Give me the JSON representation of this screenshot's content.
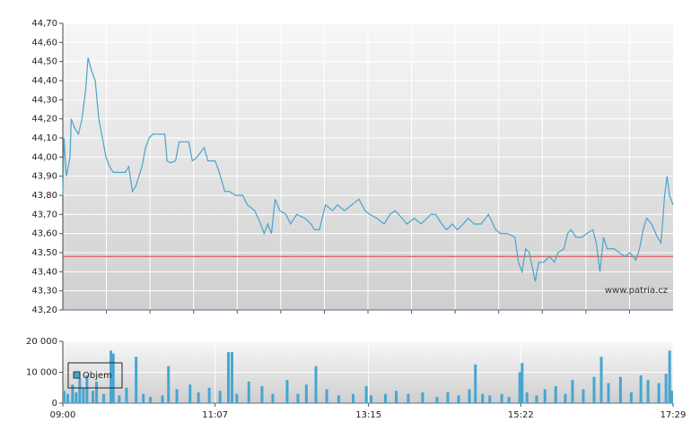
{
  "chart_data": [
    {
      "type": "line",
      "x": [
        "09:00",
        "09:01",
        "09:03",
        "09:06",
        "09:07",
        "09:10",
        "09:13",
        "09:16",
        "09:19",
        "09:21",
        "09:24",
        "09:27",
        "09:30",
        "09:33",
        "09:36",
        "09:39",
        "09:42",
        "09:46",
        "09:52",
        "09:55",
        "09:58",
        "10:01",
        "10:06",
        "10:09",
        "10:12",
        "10:15",
        "10:25",
        "10:27",
        "10:30",
        "10:34",
        "10:37",
        "10:45",
        "10:48",
        "10:52",
        "10:58",
        "11:01",
        "11:07",
        "11:10",
        "11:15",
        "11:19",
        "11:24",
        "11:30",
        "11:34",
        "11:40",
        "11:45",
        "11:48",
        "11:51",
        "11:54",
        "11:57",
        "12:01",
        "12:06",
        "12:10",
        "12:15",
        "12:22",
        "12:27",
        "12:30",
        "12:34",
        "12:39",
        "12:45",
        "12:49",
        "12:55",
        "13:01",
        "13:07",
        "13:12",
        "13:16",
        "13:22",
        "13:28",
        "13:33",
        "13:37",
        "13:43",
        "13:47",
        "13:53",
        "13:59",
        "14:07",
        "14:11",
        "14:16",
        "14:20",
        "14:25",
        "14:29",
        "14:34",
        "14:38",
        "14:43",
        "14:49",
        "14:55",
        "15:01",
        "15:05",
        "15:11",
        "15:17",
        "15:20",
        "15:23",
        "15:26",
        "15:29",
        "15:34",
        "15:37",
        "15:41",
        "15:46",
        "15:50",
        "15:53",
        "15:58",
        "16:01",
        "16:04",
        "16:08",
        "16:13",
        "16:17",
        "16:22",
        "16:25",
        "16:28",
        "16:31",
        "16:34",
        "16:40",
        "16:44",
        "16:49",
        "16:53",
        "16:58",
        "17:01",
        "17:04",
        "17:07",
        "17:11",
        "17:16",
        "17:19",
        "17:22",
        "17:24",
        "17:26",
        "17:29"
      ],
      "series": [
        {
          "color": "#4aa3cc",
          "values": [
            43.8,
            44.1,
            43.9,
            44.0,
            44.2,
            44.15,
            44.12,
            44.2,
            44.35,
            44.52,
            44.45,
            44.4,
            44.2,
            44.1,
            44.0,
            43.95,
            43.92,
            43.92,
            43.92,
            43.95,
            43.82,
            43.85,
            43.95,
            44.05,
            44.1,
            44.12,
            44.12,
            43.98,
            43.97,
            43.98,
            44.08,
            44.08,
            43.98,
            44.0,
            44.05,
            43.98,
            43.98,
            43.93,
            43.82,
            43.82,
            43.8,
            43.8,
            43.75,
            43.72,
            43.65,
            43.6,
            43.65,
            43.6,
            43.78,
            43.72,
            43.7,
            43.65,
            43.7,
            43.68,
            43.65,
            43.62,
            43.62,
            43.75,
            43.72,
            43.75,
            43.72,
            43.75,
            43.78,
            43.72,
            43.7,
            43.68,
            43.65,
            43.7,
            43.72,
            43.68,
            43.65,
            43.68,
            43.65,
            43.7,
            43.7,
            43.65,
            43.62,
            43.65,
            43.62,
            43.65,
            43.68,
            43.65,
            43.65,
            43.7,
            43.62,
            43.6,
            43.6,
            43.58,
            43.45,
            43.4,
            43.52,
            43.5,
            43.35,
            43.45,
            43.45,
            43.48,
            43.45,
            43.5,
            43.52,
            43.6,
            43.62,
            43.58,
            43.58,
            43.6,
            43.62,
            43.55,
            43.4,
            43.58,
            43.52,
            43.52,
            43.5,
            43.48,
            43.5,
            43.46,
            43.52,
            43.62,
            43.68,
            43.65,
            43.58,
            43.55,
            43.8,
            43.9,
            43.8,
            43.75
          ]
        }
      ],
      "reference_line": {
        "value": 43.48,
        "color": "#e04040"
      },
      "watermark": "www.patria.cz",
      "xlim": [
        "09:00",
        "17:29"
      ],
      "ylim": [
        43.2,
        44.7
      ],
      "yticks": [
        {
          "value": 43.2,
          "label": "43,20"
        },
        {
          "value": 43.3,
          "label": "43,30"
        },
        {
          "value": 43.4,
          "label": "43,40"
        },
        {
          "value": 43.5,
          "label": "43,50"
        },
        {
          "value": 43.6,
          "label": "43,60"
        },
        {
          "value": 43.7,
          "label": "43,70"
        },
        {
          "value": 43.8,
          "label": "43,80"
        },
        {
          "value": 43.9,
          "label": "43,90"
        },
        {
          "value": 44.0,
          "label": "44,00"
        },
        {
          "value": 44.1,
          "label": "44,10"
        },
        {
          "value": 44.2,
          "label": "44,20"
        },
        {
          "value": 44.3,
          "label": "44,30"
        },
        {
          "value": 44.4,
          "label": "44,40"
        },
        {
          "value": 44.5,
          "label": "44,50"
        },
        {
          "value": 44.6,
          "label": "44,60"
        },
        {
          "value": 44.7,
          "label": "44,70"
        }
      ],
      "grid": true
    },
    {
      "type": "bar",
      "x": [
        "09:00",
        "09:03",
        "09:07",
        "09:10",
        "09:13",
        "09:16",
        "09:19",
        "09:24",
        "09:27",
        "09:33",
        "09:39",
        "09:41",
        "09:46",
        "09:52",
        "10:00",
        "10:06",
        "10:12",
        "10:22",
        "10:27",
        "10:34",
        "10:45",
        "10:52",
        "11:01",
        "11:10",
        "11:17",
        "11:20",
        "11:24",
        "11:34",
        "11:45",
        "11:54",
        "12:06",
        "12:15",
        "12:22",
        "12:30",
        "12:39",
        "12:49",
        "13:01",
        "13:12",
        "13:16",
        "13:28",
        "13:37",
        "13:47",
        "13:59",
        "14:11",
        "14:20",
        "14:29",
        "14:38",
        "14:43",
        "14:49",
        "14:55",
        "15:05",
        "15:11",
        "15:20",
        "15:22",
        "15:26",
        "15:34",
        "15:41",
        "15:50",
        "15:58",
        "16:04",
        "16:13",
        "16:22",
        "16:28",
        "16:34",
        "16:44",
        "16:53",
        "17:01",
        "17:07",
        "17:16",
        "17:22",
        "17:25",
        "17:27"
      ],
      "series": [
        {
          "name": "Objem",
          "color": "#46a6d0",
          "values": [
            4000,
            3000,
            6000,
            3500,
            8000,
            5000,
            9000,
            4000,
            7000,
            3000,
            17000,
            16000,
            2500,
            5000,
            15000,
            3000,
            2000,
            2500,
            12000,
            4500,
            6000,
            3500,
            5000,
            4000,
            16500,
            16500,
            3000,
            7000,
            5500,
            3000,
            7500,
            3000,
            6000,
            12000,
            4500,
            2500,
            3000,
            5500,
            2500,
            3000,
            4000,
            3000,
            3500,
            2000,
            3500,
            2500,
            4500,
            12500,
            3000,
            2500,
            3000,
            2000,
            10000,
            13000,
            3500,
            2500,
            4500,
            5500,
            3000,
            7500,
            4500,
            8500,
            15000,
            6500,
            8500,
            3500,
            9000,
            7500,
            6500,
            9500,
            17000,
            4000
          ]
        }
      ],
      "legend": "left",
      "xlim": [
        "09:00",
        "17:29"
      ],
      "xticks": [
        "09:00",
        "11:07",
        "13:15",
        "15:22",
        "17:29"
      ],
      "ylim": [
        0,
        20000
      ],
      "yticks": [
        0,
        {
          "value": 10000,
          "label": "10 000"
        },
        {
          "value": 20000,
          "label": "20 000"
        }
      ],
      "grid": true
    }
  ]
}
